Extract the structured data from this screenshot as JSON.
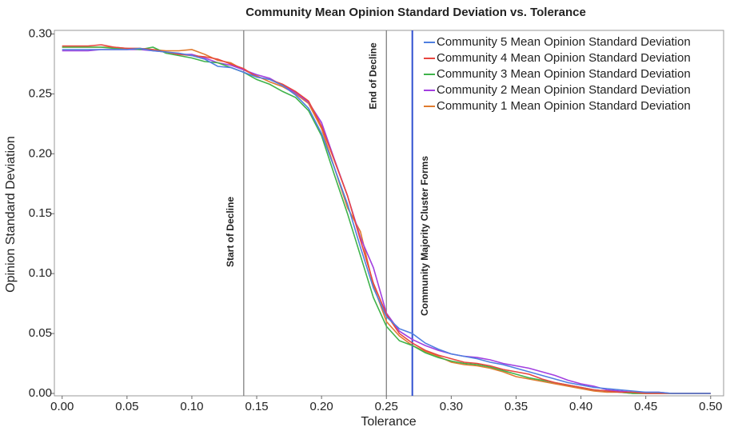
{
  "chart_data": {
    "type": "line",
    "title": "Community Mean Opinion Standard Deviation vs. Tolerance",
    "x_label": "Tolerance",
    "y_label": "Opinion Standard Deviation",
    "x": [
      0,
      0.01,
      0.02,
      0.03,
      0.04,
      0.05,
      0.06,
      0.07,
      0.08,
      0.09,
      0.1,
      0.11,
      0.12,
      0.13,
      0.14,
      0.15,
      0.16,
      0.17,
      0.18,
      0.19,
      0.2,
      0.21,
      0.22,
      0.23,
      0.24,
      0.25,
      0.26,
      0.27,
      0.28,
      0.29,
      0.3,
      0.31,
      0.32,
      0.33,
      0.34,
      0.35,
      0.36,
      0.37,
      0.38,
      0.39,
      0.4,
      0.41,
      0.42,
      0.43,
      0.44,
      0.45,
      0.46,
      0.47,
      0.48,
      0.49,
      0.5
    ],
    "series": [
      {
        "name": "Community 5 Mean Opinion Standard Deviation",
        "color": "#4f7fe0",
        "values": [
          0.287,
          0.287,
          0.287,
          0.287,
          0.287,
          0.287,
          0.288,
          0.286,
          0.285,
          0.284,
          0.282,
          0.279,
          0.273,
          0.272,
          0.268,
          0.264,
          0.262,
          0.257,
          0.249,
          0.238,
          0.217,
          0.188,
          0.158,
          0.122,
          0.088,
          0.064,
          0.054,
          0.05,
          0.042,
          0.037,
          0.033,
          0.031,
          0.029,
          0.026,
          0.024,
          0.021,
          0.018,
          0.015,
          0.012,
          0.009,
          0.007,
          0.005,
          0.004,
          0.003,
          0.002,
          0.001,
          0.001,
          0,
          0,
          0,
          0
        ]
      },
      {
        "name": "Community 4 Mean Opinion Standard Deviation",
        "color": "#e8463f",
        "values": [
          0.29,
          0.29,
          0.29,
          0.291,
          0.289,
          0.288,
          0.288,
          0.287,
          0.285,
          0.283,
          0.282,
          0.281,
          0.279,
          0.275,
          0.271,
          0.264,
          0.262,
          0.258,
          0.252,
          0.244,
          0.223,
          0.194,
          0.165,
          0.128,
          0.092,
          0.066,
          0.05,
          0.042,
          0.036,
          0.032,
          0.029,
          0.026,
          0.025,
          0.023,
          0.02,
          0.018,
          0.016,
          0.012,
          0.009,
          0.007,
          0.005,
          0.003,
          0.002,
          0.001,
          0.001,
          0,
          0,
          0,
          0,
          0,
          0
        ]
      },
      {
        "name": "Community 3 Mean Opinion Standard Deviation",
        "color": "#3fb34a",
        "values": [
          0.289,
          0.289,
          0.289,
          0.289,
          0.288,
          0.288,
          0.287,
          0.289,
          0.284,
          0.282,
          0.28,
          0.277,
          0.276,
          0.272,
          0.268,
          0.262,
          0.258,
          0.252,
          0.247,
          0.236,
          0.215,
          0.182,
          0.15,
          0.115,
          0.08,
          0.056,
          0.044,
          0.04,
          0.034,
          0.03,
          0.027,
          0.025,
          0.024,
          0.022,
          0.019,
          0.016,
          0.013,
          0.011,
          0.009,
          0.007,
          0.005,
          0.003,
          0.002,
          0.001,
          0,
          0,
          0,
          0,
          0,
          0,
          0
        ]
      },
      {
        "name": "Community 2 Mean Opinion Standard Deviation",
        "color": "#a23fe0",
        "values": [
          0.286,
          0.286,
          0.286,
          0.287,
          0.287,
          0.287,
          0.287,
          0.286,
          0.285,
          0.283,
          0.283,
          0.28,
          0.276,
          0.274,
          0.27,
          0.266,
          0.263,
          0.257,
          0.251,
          0.243,
          0.226,
          0.195,
          0.165,
          0.13,
          0.105,
          0.067,
          0.052,
          0.045,
          0.04,
          0.036,
          0.033,
          0.031,
          0.03,
          0.028,
          0.025,
          0.023,
          0.021,
          0.018,
          0.015,
          0.011,
          0.008,
          0.006,
          0.003,
          0.002,
          0.001,
          0.001,
          0.001,
          0,
          0,
          0,
          0
        ]
      },
      {
        "name": "Community 1 Mean Opinion Standard Deviation",
        "color": "#e07b2f",
        "values": [
          0.289,
          0.289,
          0.289,
          0.289,
          0.289,
          0.288,
          0.288,
          0.287,
          0.286,
          0.286,
          0.287,
          0.283,
          0.278,
          0.276,
          0.27,
          0.265,
          0.26,
          0.256,
          0.25,
          0.242,
          0.221,
          0.188,
          0.155,
          0.135,
          0.09,
          0.06,
          0.048,
          0.04,
          0.035,
          0.031,
          0.026,
          0.024,
          0.023,
          0.021,
          0.018,
          0.014,
          0.012,
          0.01,
          0.008,
          0.006,
          0.004,
          0.002,
          0.001,
          0.001,
          0,
          0,
          0,
          0,
          0,
          0,
          0
        ]
      }
    ],
    "annotations": [
      {
        "x": 0.14,
        "label": "Start of Decline",
        "color": "#777777"
      },
      {
        "x": 0.25,
        "label": "End of Decline",
        "color": "#777777"
      },
      {
        "x": 0.27,
        "label": "Community Majority Cluster Forms",
        "color": "#3050d0"
      }
    ],
    "xlim": [
      -0.006,
      0.51
    ],
    "ylim": [
      -0.002,
      0.303
    ],
    "xticks": [
      {
        "value": 0,
        "label": "0.00"
      },
      {
        "value": 0.05,
        "label": "0.05"
      },
      {
        "value": 0.1,
        "label": "0.10"
      },
      {
        "value": 0.15,
        "label": "0.15"
      },
      {
        "value": 0.2,
        "label": "0.20"
      },
      {
        "value": 0.25,
        "label": "0.25"
      },
      {
        "value": 0.3,
        "label": "0.30"
      },
      {
        "value": 0.35,
        "label": "0.35"
      },
      {
        "value": 0.4,
        "label": "0.40"
      },
      {
        "value": 0.45,
        "label": "0.45"
      },
      {
        "value": 0.5,
        "label": "0.50"
      }
    ],
    "yticks": [
      {
        "value": 0,
        "label": "0.00"
      },
      {
        "value": 0.05,
        "label": "0.05"
      },
      {
        "value": 0.1,
        "label": "0.10"
      },
      {
        "value": 0.15,
        "label": "0.15"
      },
      {
        "value": 0.2,
        "label": "0.20"
      },
      {
        "value": 0.25,
        "label": "0.25"
      },
      {
        "value": 0.3,
        "label": "0.30"
      }
    ],
    "legend": "upper right"
  }
}
